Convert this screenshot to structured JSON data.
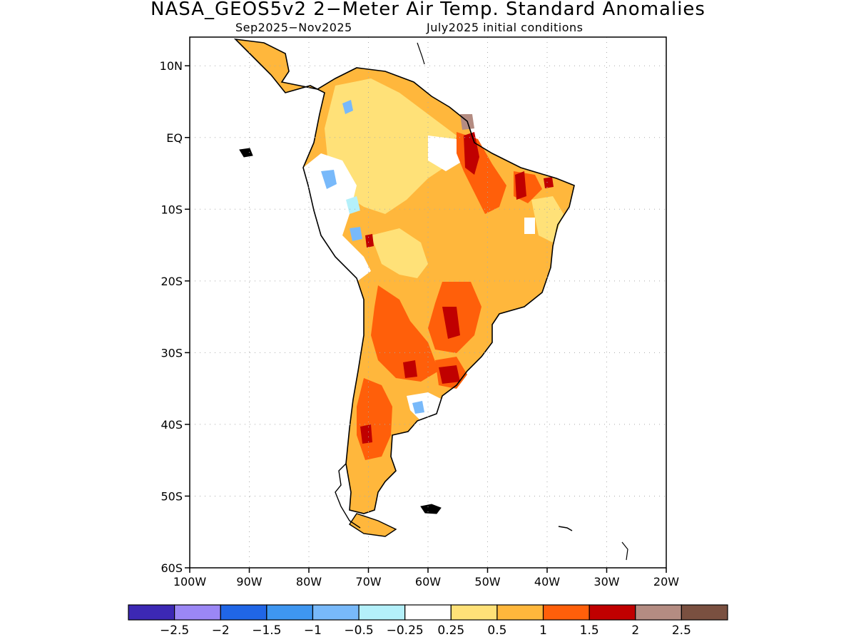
{
  "title": "NASA_GEOS5v2 2−Meter Air Temp. Standard Anomalies",
  "subtitle_left": "Sep2025−Nov2025",
  "subtitle_right": "July2025 initial conditions",
  "map": {
    "lon_range": [
      -100,
      -20
    ],
    "lat_range": [
      -60,
      14
    ],
    "lat_ticks": [
      {
        "lat": 10,
        "label": "10N"
      },
      {
        "lat": 0,
        "label": "EQ"
      },
      {
        "lat": -10,
        "label": "10S"
      },
      {
        "lat": -20,
        "label": "20S"
      },
      {
        "lat": -30,
        "label": "30S"
      },
      {
        "lat": -40,
        "label": "40S"
      },
      {
        "lat": -50,
        "label": "50S"
      },
      {
        "lat": -60,
        "label": "60S"
      }
    ],
    "lon_ticks": [
      {
        "lon": -100,
        "label": "100W"
      },
      {
        "lon": -90,
        "label": "90W"
      },
      {
        "lon": -80,
        "label": "80W"
      },
      {
        "lon": -70,
        "label": "70W"
      },
      {
        "lon": -60,
        "label": "60W"
      },
      {
        "lon": -50,
        "label": "50W"
      },
      {
        "lon": -40,
        "label": "40W"
      },
      {
        "lon": -30,
        "label": "30W"
      },
      {
        "lon": -20,
        "label": "20W"
      }
    ]
  },
  "colorbar": {
    "colors": [
      "#3c28b4",
      "#9b87f5",
      "#2066e6",
      "#3e96f0",
      "#78b9fa",
      "#b4f0fa",
      "#ffffff",
      "#ffe178",
      "#ffb73c",
      "#ff5f0a",
      "#c00000",
      "#b48c82",
      "#7a5040"
    ],
    "labels": [
      "−2.5",
      "−2",
      "−1.5",
      "−1",
      "−0.5",
      "−0.25",
      "0.25",
      "0.5",
      "1",
      "1.5",
      "2",
      "2.5"
    ]
  }
}
